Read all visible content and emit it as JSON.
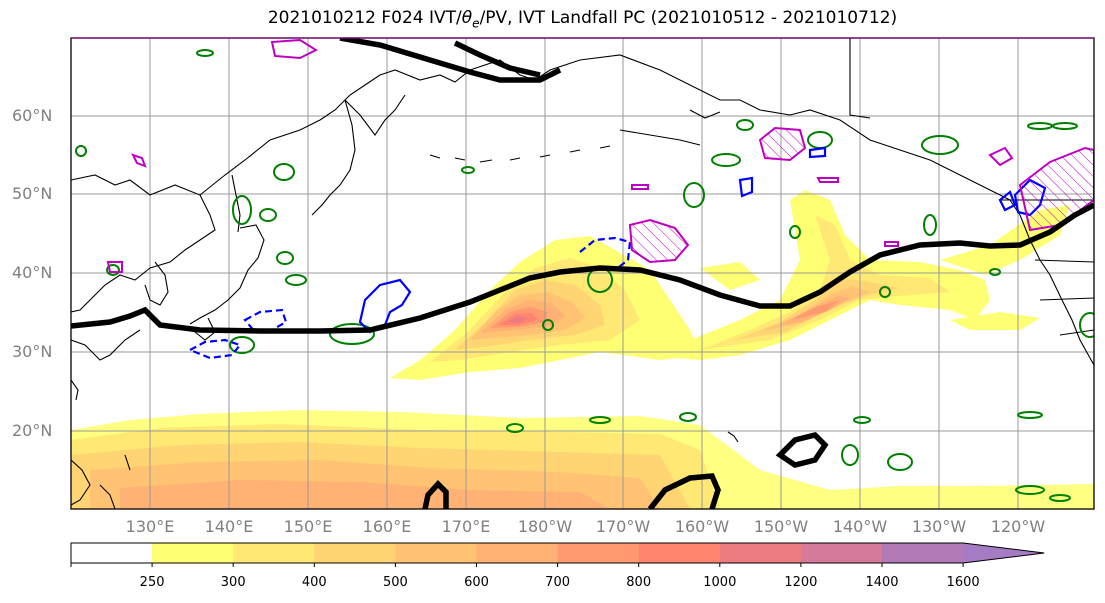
{
  "title_prefix": "2021010212 F024 IVT/",
  "title_theta": "θ",
  "title_theta_sub": "e",
  "title_suffix": "/PV, IVT Landfall PC (2021010512 - 2021010712)",
  "lat_labels": [
    "60°N",
    "50°N",
    "40°N",
    "30°N",
    "20°N"
  ],
  "lon_labels": [
    "130°E",
    "140°E",
    "150°E",
    "160°E",
    "170°E",
    "180°W",
    "170°W",
    "160°W",
    "150°W",
    "140°W",
    "130°W",
    "120°W"
  ],
  "colorbar": {
    "ticks": [
      "250",
      "300",
      "400",
      "500",
      "600",
      "700",
      "800",
      "1000",
      "1200",
      "1400",
      "1600"
    ],
    "colors": [
      "#ffffff",
      "#ffff73",
      "#ffe873",
      "#ffd573",
      "#ffc373",
      "#ffb273",
      "#ff9a70",
      "#ff8470",
      "#ee7a82",
      "#d57a9a",
      "#b47ab8",
      "#a57cc4"
    ],
    "extend": "max"
  },
  "colors": {
    "ivt_contour": "#ff9966",
    "pv_positive": "#0000ff",
    "pv_negative": "#0000ff",
    "theta_contour": "#008000",
    "landfall_pc": "#c000c0",
    "jet_line": "#000000",
    "coastline": "#000000",
    "grid": "#9a9a9a"
  }
}
